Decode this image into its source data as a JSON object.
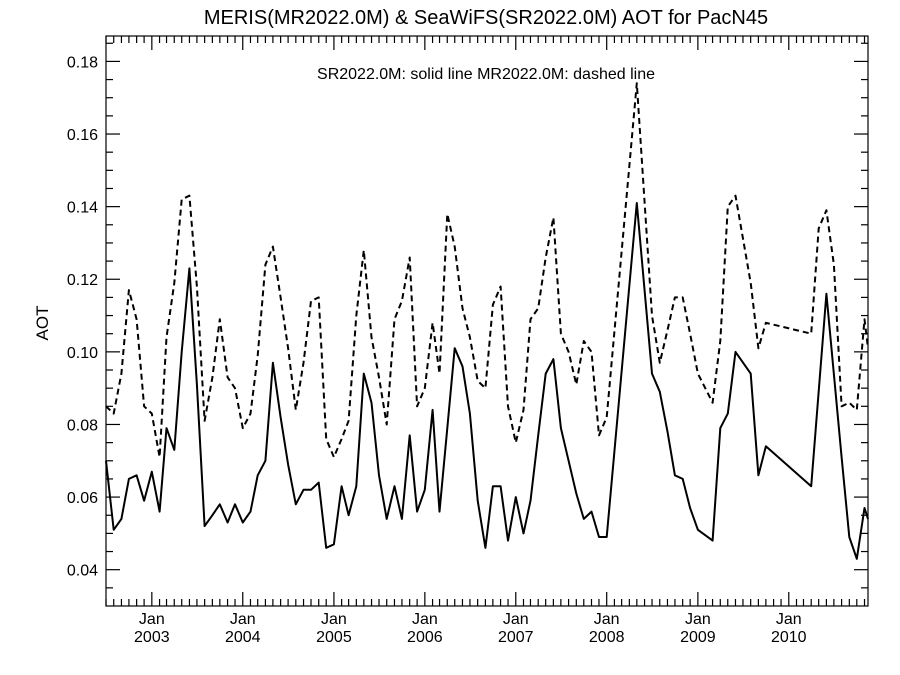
{
  "chart_data": {
    "type": "line",
    "title": "MERIS(MR2022.0M) & SeaWiFS(SR2022.0M)  AOT for PacN45",
    "annotation": "SR2022.0M: solid line   MR2022.0M: dashed line",
    "ylabel": "AOT",
    "xlabel": "",
    "xlim": [
      "2002-07-01",
      "2010-11-15"
    ],
    "ylim": [
      0.03,
      0.187
    ],
    "y_ticks": [
      "0.04",
      "0.06",
      "0.08",
      "0.10",
      "0.12",
      "0.14",
      "0.16",
      "0.18"
    ],
    "x_ticks": [
      {
        "date": "2003-01-01",
        "month": "Jan",
        "year": "2003"
      },
      {
        "date": "2004-01-01",
        "month": "Jan",
        "year": "2004"
      },
      {
        "date": "2005-01-01",
        "month": "Jan",
        "year": "2005"
      },
      {
        "date": "2006-01-01",
        "month": "Jan",
        "year": "2006"
      },
      {
        "date": "2007-01-01",
        "month": "Jan",
        "year": "2007"
      },
      {
        "date": "2008-01-01",
        "month": "Jan",
        "year": "2008"
      },
      {
        "date": "2009-01-01",
        "month": "Jan",
        "year": "2009"
      },
      {
        "date": "2010-01-01",
        "month": "Jan",
        "year": "2010"
      }
    ],
    "grid": false,
    "series": [
      {
        "name": "SR2022.0M",
        "style": "solid",
        "color": "#000000",
        "points": [
          [
            "2002-07-01",
            0.07
          ],
          [
            "2002-08-01",
            0.051
          ],
          [
            "2002-09-01",
            0.054
          ],
          [
            "2002-10-01",
            0.065
          ],
          [
            "2002-11-01",
            0.066
          ],
          [
            "2002-12-01",
            0.059
          ],
          [
            "2003-01-01",
            0.067
          ],
          [
            "2003-02-01",
            0.056
          ],
          [
            "2003-03-01",
            0.079
          ],
          [
            "2003-04-01",
            0.073
          ],
          [
            "2003-05-01",
            0.1
          ],
          [
            "2003-06-01",
            0.123
          ],
          [
            "2003-07-01",
            0.091
          ],
          [
            "2003-08-01",
            0.052
          ],
          [
            "2003-09-01",
            0.055
          ],
          [
            "2003-10-01",
            0.058
          ],
          [
            "2003-11-01",
            0.053
          ],
          [
            "2003-12-01",
            0.058
          ],
          [
            "2004-01-01",
            0.053
          ],
          [
            "2004-02-01",
            0.056
          ],
          [
            "2004-03-01",
            0.066
          ],
          [
            "2004-04-01",
            0.07
          ],
          [
            "2004-05-01",
            0.097
          ],
          [
            "2004-06-01",
            0.082
          ],
          [
            "2004-07-01",
            0.069
          ],
          [
            "2004-08-01",
            0.058
          ],
          [
            "2004-09-01",
            0.062
          ],
          [
            "2004-10-01",
            0.062
          ],
          [
            "2004-11-01",
            0.064
          ],
          [
            "2004-12-01",
            0.046
          ],
          [
            "2005-01-01",
            0.047
          ],
          [
            "2005-02-01",
            0.063
          ],
          [
            "2005-03-01",
            0.055
          ],
          [
            "2005-04-01",
            0.063
          ],
          [
            "2005-05-01",
            0.094
          ],
          [
            "2005-06-01",
            0.086
          ],
          [
            "2005-07-01",
            0.066
          ],
          [
            "2005-08-01",
            0.054
          ],
          [
            "2005-09-01",
            0.063
          ],
          [
            "2005-10-01",
            0.054
          ],
          [
            "2005-11-01",
            0.077
          ],
          [
            "2005-12-01",
            0.056
          ],
          [
            "2006-01-01",
            0.062
          ],
          [
            "2006-02-01",
            0.084
          ],
          [
            "2006-03-01",
            0.056
          ],
          [
            "2006-04-01",
            0.079
          ],
          [
            "2006-05-01",
            0.101
          ],
          [
            "2006-06-01",
            0.096
          ],
          [
            "2006-07-01",
            0.083
          ],
          [
            "2006-08-01",
            0.059
          ],
          [
            "2006-09-01",
            0.046
          ],
          [
            "2006-10-01",
            0.063
          ],
          [
            "2006-11-01",
            0.063
          ],
          [
            "2006-12-01",
            0.048
          ],
          [
            "2007-01-01",
            0.06
          ],
          [
            "2007-02-01",
            0.05
          ],
          [
            "2007-03-01",
            0.059
          ],
          [
            "2007-04-01",
            0.077
          ],
          [
            "2007-05-01",
            0.094
          ],
          [
            "2007-06-01",
            0.098
          ],
          [
            "2007-07-01",
            0.079
          ],
          [
            "2007-08-01",
            0.07
          ],
          [
            "2007-09-01",
            0.061
          ],
          [
            "2007-10-01",
            0.054
          ],
          [
            "2007-11-01",
            0.056
          ],
          [
            "2007-12-01",
            0.049
          ],
          [
            "2008-01-01",
            0.049
          ],
          [
            "2008-05-01",
            0.141
          ],
          [
            "2008-07-01",
            0.094
          ],
          [
            "2008-08-01",
            0.089
          ],
          [
            "2008-09-01",
            0.078
          ],
          [
            "2008-10-01",
            0.066
          ],
          [
            "2008-11-01",
            0.065
          ],
          [
            "2008-12-01",
            0.057
          ],
          [
            "2009-01-01",
            0.051
          ],
          [
            "2009-03-01",
            0.048
          ],
          [
            "2009-04-01",
            0.079
          ],
          [
            "2009-05-01",
            0.083
          ],
          [
            "2009-06-01",
            0.1
          ],
          [
            "2009-08-01",
            0.094
          ],
          [
            "2009-09-01",
            0.066
          ],
          [
            "2009-10-01",
            0.074
          ],
          [
            "2010-04-01",
            0.063
          ],
          [
            "2010-06-01",
            0.116
          ],
          [
            "2010-08-01",
            0.071
          ],
          [
            "2010-09-01",
            0.049
          ],
          [
            "2010-10-01",
            0.043
          ],
          [
            "2010-11-01",
            0.057
          ],
          [
            "2010-11-15",
            0.054
          ]
        ]
      },
      {
        "name": "MR2022.0M",
        "style": "dashed",
        "color": "#000000",
        "points": [
          [
            "2002-07-01",
            0.085
          ],
          [
            "2002-08-01",
            0.083
          ],
          [
            "2002-09-01",
            0.094
          ],
          [
            "2002-10-01",
            0.117
          ],
          [
            "2002-11-01",
            0.109
          ],
          [
            "2002-12-01",
            0.085
          ],
          [
            "2003-01-01",
            0.083
          ],
          [
            "2003-02-01",
            0.071
          ],
          [
            "2003-03-01",
            0.104
          ],
          [
            "2003-04-01",
            0.119
          ],
          [
            "2003-05-01",
            0.142
          ],
          [
            "2003-06-01",
            0.143
          ],
          [
            "2003-07-01",
            0.118
          ],
          [
            "2003-08-01",
            0.081
          ],
          [
            "2003-09-01",
            0.093
          ],
          [
            "2003-10-01",
            0.109
          ],
          [
            "2003-11-01",
            0.093
          ],
          [
            "2003-12-01",
            0.09
          ],
          [
            "2004-01-01",
            0.079
          ],
          [
            "2004-02-01",
            0.083
          ],
          [
            "2004-03-01",
            0.099
          ],
          [
            "2004-04-01",
            0.124
          ],
          [
            "2004-05-01",
            0.129
          ],
          [
            "2004-06-01",
            0.115
          ],
          [
            "2004-07-01",
            0.101
          ],
          [
            "2004-08-01",
            0.084
          ],
          [
            "2004-09-01",
            0.097
          ],
          [
            "2004-10-01",
            0.114
          ],
          [
            "2004-11-01",
            0.115
          ],
          [
            "2004-12-01",
            0.076
          ],
          [
            "2005-01-01",
            0.071
          ],
          [
            "2005-02-01",
            0.076
          ],
          [
            "2005-03-01",
            0.081
          ],
          [
            "2005-04-01",
            0.11
          ],
          [
            "2005-05-01",
            0.128
          ],
          [
            "2005-06-01",
            0.104
          ],
          [
            "2005-07-01",
            0.093
          ],
          [
            "2005-08-01",
            0.08
          ],
          [
            "2005-09-01",
            0.109
          ],
          [
            "2005-10-01",
            0.114
          ],
          [
            "2005-11-01",
            0.126
          ],
          [
            "2005-12-01",
            0.085
          ],
          [
            "2006-01-01",
            0.09
          ],
          [
            "2006-02-01",
            0.108
          ],
          [
            "2006-03-01",
            0.094
          ],
          [
            "2006-04-01",
            0.138
          ],
          [
            "2006-05-01",
            0.129
          ],
          [
            "2006-06-01",
            0.112
          ],
          [
            "2006-07-01",
            0.104
          ],
          [
            "2006-08-01",
            0.092
          ],
          [
            "2006-09-01",
            0.09
          ],
          [
            "2006-10-01",
            0.113
          ],
          [
            "2006-11-01",
            0.118
          ],
          [
            "2006-12-01",
            0.085
          ],
          [
            "2007-01-01",
            0.075
          ],
          [
            "2007-02-01",
            0.084
          ],
          [
            "2007-03-01",
            0.109
          ],
          [
            "2007-04-01",
            0.112
          ],
          [
            "2007-05-01",
            0.126
          ],
          [
            "2007-06-01",
            0.137
          ],
          [
            "2007-07-01",
            0.105
          ],
          [
            "2007-08-01",
            0.1
          ],
          [
            "2007-09-01",
            0.091
          ],
          [
            "2007-10-01",
            0.103
          ],
          [
            "2007-11-01",
            0.1
          ],
          [
            "2007-12-01",
            0.077
          ],
          [
            "2008-01-01",
            0.082
          ],
          [
            "2008-05-01",
            0.174
          ],
          [
            "2008-07-01",
            0.11
          ],
          [
            "2008-08-01",
            0.097
          ],
          [
            "2008-09-01",
            0.106
          ],
          [
            "2008-10-01",
            0.115
          ],
          [
            "2008-11-01",
            0.115
          ],
          [
            "2008-12-01",
            0.105
          ],
          [
            "2009-01-01",
            0.094
          ],
          [
            "2009-03-01",
            0.086
          ],
          [
            "2009-04-01",
            0.103
          ],
          [
            "2009-05-01",
            0.14
          ],
          [
            "2009-06-01",
            0.143
          ],
          [
            "2009-08-01",
            0.119
          ],
          [
            "2009-09-01",
            0.101
          ],
          [
            "2009-10-01",
            0.108
          ],
          [
            "2010-04-01",
            0.105
          ],
          [
            "2010-05-01",
            0.134
          ],
          [
            "2010-06-01",
            0.139
          ],
          [
            "2010-07-01",
            0.124
          ],
          [
            "2010-08-01",
            0.085
          ],
          [
            "2010-09-01",
            0.086
          ],
          [
            "2010-10-01",
            0.084
          ],
          [
            "2010-11-01",
            0.109
          ],
          [
            "2010-11-15",
            0.101
          ]
        ]
      }
    ]
  }
}
